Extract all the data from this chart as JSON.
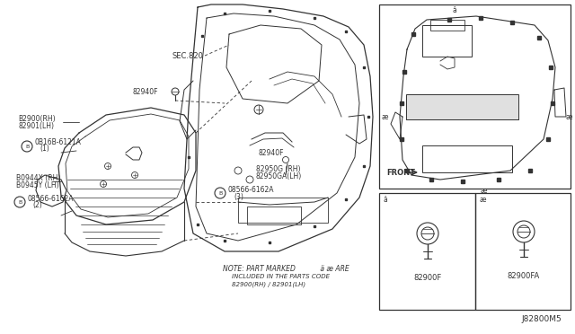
{
  "bg_color": "#ffffff",
  "diagram_id": "J82800M5",
  "line_color": "#333333",
  "text_color": "#333333",
  "labels": {
    "sec820": "SEC.820",
    "82940f_top": "82940F",
    "82900rh": "B2900(RH)\n82901(LH)",
    "08b16b": "B0B16B-6121A\n  (1)",
    "80944x": "B0944X (RH)\nB0945Y (LH)",
    "08566_2": "B08566-6162A\n    (2)",
    "82940f_bot": "82940F",
    "82950g": "82950G (RH)\n82950GA(LH)",
    "08566_3": "B08566-6162A\n    (3)",
    "note1": "NOTE: PART MARKED",
    "note2": " ARE",
    "note3": "  INCLUDED IN THE PARTS CODE",
    "note4": "  82900(RH) / 82901(LH)",
    "front": "FRONT",
    "82900f": "82900F",
    "82900fa": "82900FA"
  }
}
